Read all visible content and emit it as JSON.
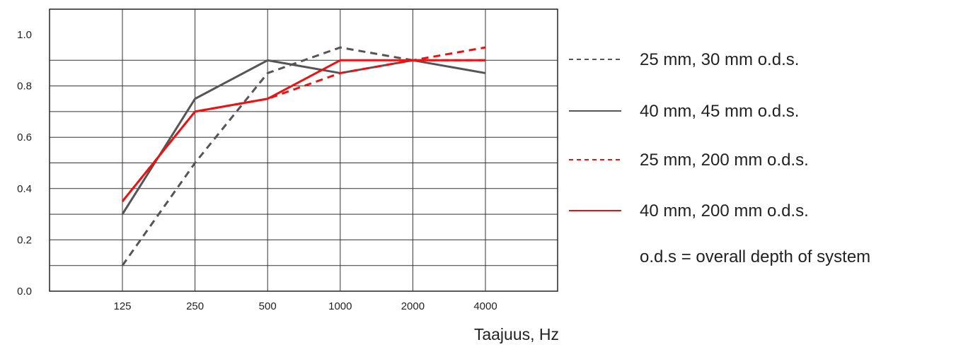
{
  "chart_data": {
    "type": "line",
    "x": [
      "125",
      "250",
      "500",
      "1000",
      "2000",
      "4000"
    ],
    "xlabel": "Taajuus, Hz",
    "ylabel": "",
    "ylim": [
      0,
      1.0
    ],
    "yticks": [
      "0.0",
      "0.2",
      "0.4",
      "0.6",
      "0.8",
      "1.0"
    ],
    "grid": true,
    "legend_position": "right",
    "series": [
      {
        "name": "25 mm, 30 mm o.d.s.",
        "color": "#555555",
        "dash": true,
        "values": [
          0.1,
          0.5,
          0.85,
          0.95,
          0.9,
          0.9
        ]
      },
      {
        "name": "40 mm, 45 mm o.d.s.",
        "color": "#555555",
        "dash": false,
        "values": [
          0.3,
          0.75,
          0.9,
          0.85,
          0.9,
          0.85
        ]
      },
      {
        "name": "25 mm, 200 mm o.d.s.",
        "color": "#ee1111",
        "dash": true,
        "values": [
          0.35,
          0.7,
          0.75,
          0.85,
          0.9,
          0.95
        ]
      },
      {
        "name": "40 mm, 200 mm o.d.s.",
        "color": "#ee1111",
        "dash": false,
        "values": [
          0.35,
          0.7,
          0.75,
          0.9,
          0.9,
          0.9
        ]
      }
    ],
    "note": "o.d.s = overall depth of system"
  }
}
